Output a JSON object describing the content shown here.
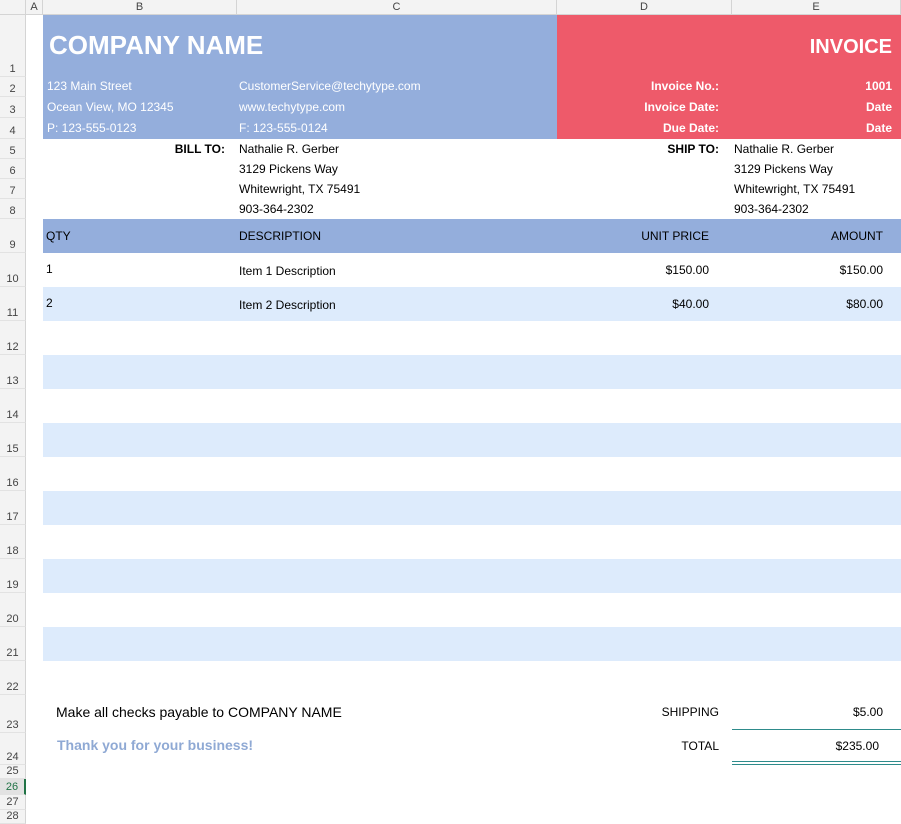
{
  "sheet": {
    "columns": [
      "A",
      "B",
      "C",
      "D",
      "E"
    ],
    "rows": [
      "1",
      "2",
      "3",
      "4",
      "5",
      "6",
      "7",
      "8",
      "9",
      "10",
      "11",
      "12",
      "13",
      "14",
      "15",
      "16",
      "17",
      "18",
      "19",
      "20",
      "21",
      "22",
      "23",
      "24",
      "25",
      "26",
      "27",
      "28"
    ],
    "active_row": "26"
  },
  "company": {
    "name": "COMPANY NAME",
    "street": "123 Main Street",
    "city": "Ocean View, MO 12345",
    "phone": "P: 123-555-0123",
    "email": "CustomerService@techytype.com",
    "website": "www.techytype.com",
    "fax": "F: 123-555-0124"
  },
  "invoice": {
    "title": "INVOICE",
    "no_label": "Invoice No.:",
    "no_value": "1001",
    "date_label": "Invoice Date:",
    "date_value": "Date",
    "due_label": "Due Date:",
    "due_value": "Date"
  },
  "bill_to": {
    "label": "BILL TO:",
    "name": "Nathalie R. Gerber",
    "street": "3129 Pickens Way",
    "city": "Whitewright, TX 75491",
    "phone": "903-364-2302"
  },
  "ship_to": {
    "label": "SHIP TO:",
    "name": "Nathalie R. Gerber",
    "street": "3129 Pickens Way",
    "city": "Whitewright, TX 75491",
    "phone": "903-364-2302"
  },
  "items_table": {
    "headers": {
      "qty": "QTY",
      "description": "DESCRIPTION",
      "unit_price": "UNIT PRICE",
      "amount": "AMOUNT"
    },
    "rows": [
      {
        "qty": "1",
        "description": "Item 1 Description",
        "unit_price": "$150.00",
        "amount": "$150.00"
      },
      {
        "qty": "2",
        "description": "Item 2 Description",
        "unit_price": "$40.00",
        "amount": "$80.00"
      }
    ]
  },
  "footer": {
    "checks_note": "Make all checks payable to COMPANY NAME",
    "thanks": "Thank you for your business!",
    "shipping_label": "SHIPPING",
    "shipping_value": "$5.00",
    "total_label": "TOTAL",
    "total_value": "$235.00"
  },
  "colors": {
    "header_blue": "#94aedc",
    "header_red": "#ee5a6a",
    "row_stripe": "#ddebfc",
    "thanks_text": "#8fa9d4",
    "total_rule": "#2e8b8b"
  }
}
